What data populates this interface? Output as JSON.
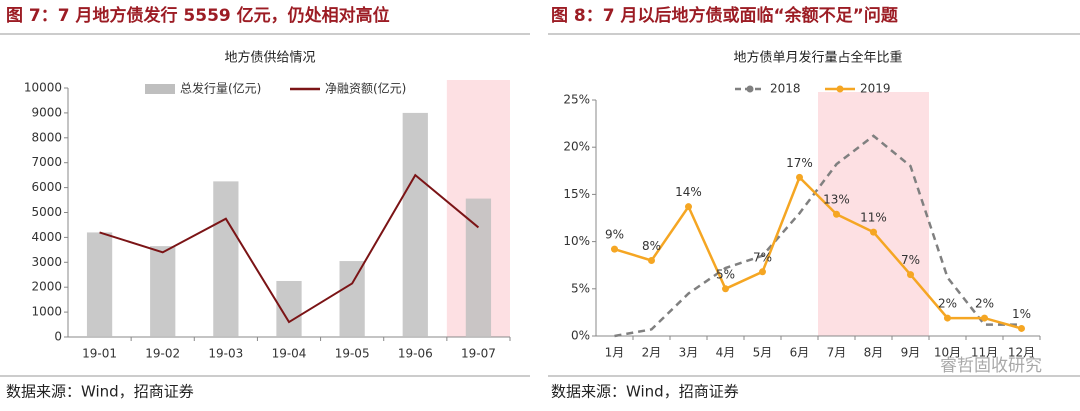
{
  "chart_data": [
    {
      "type": "combo",
      "figure_title": "图 7：7 月地方债发行 5559 亿元，仍处相对高位",
      "title": "地方债供给情况",
      "source": "数据来源：Wind，招商证券",
      "categories": [
        "19-01",
        "19-02",
        "19-03",
        "19-04",
        "19-05",
        "19-06",
        "19-07"
      ],
      "series": [
        {
          "name": "总发行量(亿元)",
          "type": "bar",
          "color": "#bfbfbf",
          "values": [
            4200,
            3650,
            6250,
            2250,
            3050,
            9000,
            5559
          ]
        },
        {
          "name": "净融资额(亿元)",
          "type": "line",
          "color": "#7b1416",
          "values": [
            4200,
            3400,
            4750,
            600,
            2150,
            6500,
            4400
          ]
        }
      ],
      "ylim": [
        0,
        10000
      ],
      "yticks": [
        0,
        1000,
        2000,
        3000,
        4000,
        5000,
        6000,
        7000,
        8000,
        9000,
        10000
      ],
      "highlight": [
        "19-07",
        "19-07"
      ],
      "highlight_color": "#fde0e3",
      "legend": "top"
    },
    {
      "type": "line",
      "figure_title": "图 8：7 月以后地方债或面临“余额不足”问题",
      "title": "地方债单月发行量占全年比重",
      "source": "数据来源：Wind，招商证券",
      "categories": [
        "1月",
        "2月",
        "3月",
        "4月",
        "5月",
        "6月",
        "7月",
        "8月",
        "9月",
        "10月",
        "11月",
        "12月"
      ],
      "series": [
        {
          "name": "2018",
          "color": "#808080",
          "dash": true,
          "values": [
            0,
            0.7,
            4.5,
            7.2,
            8.5,
            13,
            18.2,
            21.2,
            18,
            6.2,
            1.2,
            1.2
          ]
        },
        {
          "name": "2019",
          "color": "#f5a623",
          "dash": false,
          "values": [
            9.2,
            8,
            13.7,
            5,
            6.8,
            16.8,
            12.9,
            11,
            6.5,
            1.9,
            1.9,
            0.8
          ],
          "value_labels": [
            "9%",
            "8%",
            "14%",
            "5%",
            "7%",
            "17%",
            "13%",
            "11%",
            "7%",
            "2%",
            "2%",
            "1%"
          ]
        }
      ],
      "ylim": [
        0,
        25
      ],
      "yticks": [
        {
          "value": 0,
          "label": "0%"
        },
        {
          "value": 5,
          "label": "5%"
        },
        {
          "value": 10,
          "label": "10%"
        },
        {
          "value": 15,
          "label": "15%"
        },
        {
          "value": 20,
          "label": "20%"
        },
        {
          "value": 25,
          "label": "25%"
        }
      ],
      "highlight": [
        "7月",
        "9月"
      ],
      "highlight_color": "#fde0e3",
      "legend": "top"
    }
  ],
  "watermark": "睿哲固收研究"
}
